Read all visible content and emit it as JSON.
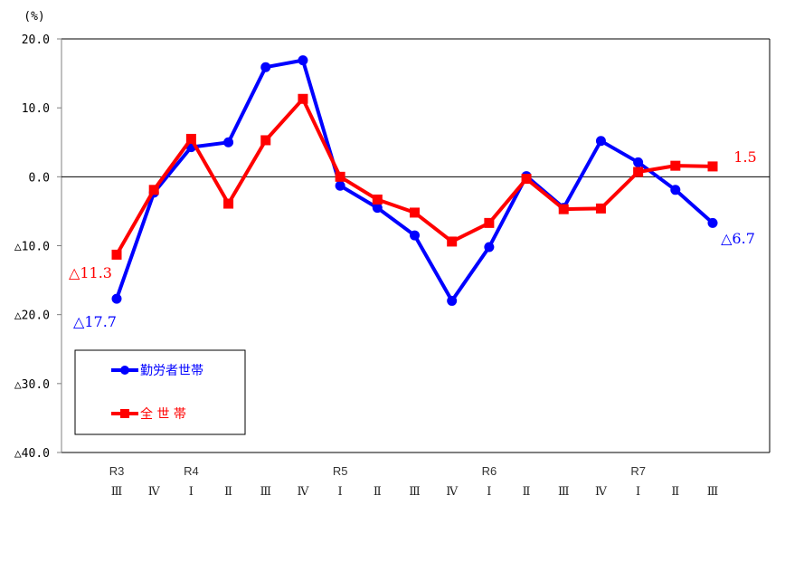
{
  "chart_data": {
    "type": "line",
    "title": "",
    "ylabel": "(%)",
    "xlabel": "",
    "ylim": [
      -40,
      20
    ],
    "yticks": [
      20,
      10,
      0,
      -10,
      -20,
      -30,
      -40
    ],
    "ytick_labels": [
      "20.0",
      "10.0",
      "0.0",
      "△10.0",
      "△20.0",
      "△30.0",
      "△40.0"
    ],
    "grid": false,
    "zero_line": true,
    "year_labels": [
      {
        "index": 0,
        "label": "R3"
      },
      {
        "index": 2,
        "label": "R4"
      },
      {
        "index": 6,
        "label": "R5"
      },
      {
        "index": 10,
        "label": "R6"
      },
      {
        "index": 14,
        "label": "R7"
      }
    ],
    "categories": [
      "Ⅲ",
      "Ⅳ",
      "Ⅰ",
      "Ⅱ",
      "Ⅲ",
      "Ⅳ",
      "Ⅰ",
      "Ⅱ",
      "Ⅲ",
      "Ⅳ",
      "Ⅰ",
      "Ⅱ",
      "Ⅲ",
      "Ⅳ",
      "Ⅰ",
      "Ⅱ",
      "Ⅲ"
    ],
    "series": [
      {
        "name": "勤労者世帯",
        "color": "#0000ff",
        "marker": "circle",
        "values": [
          -17.7,
          -2.3,
          4.3,
          5.0,
          15.9,
          16.9,
          -1.3,
          -4.5,
          -8.5,
          -18.0,
          -10.2,
          0.1,
          -4.5,
          5.2,
          2.1,
          -1.9,
          -6.7
        ]
      },
      {
        "name": "全 世 帯",
        "color": "#ff0000",
        "marker": "square",
        "values": [
          -11.3,
          -1.9,
          5.5,
          -3.9,
          5.3,
          11.3,
          0.0,
          -3.3,
          -5.2,
          -9.4,
          -6.7,
          -0.3,
          -4.7,
          -4.6,
          0.7,
          1.6,
          1.5
        ]
      }
    ],
    "annotations": [
      {
        "series": 1,
        "index": 0,
        "text": "△11.3",
        "color": "#ff0000"
      },
      {
        "series": 0,
        "index": 0,
        "text": "△17.7",
        "color": "#0000ff"
      },
      {
        "series": 1,
        "index": 16,
        "text": "1.5",
        "color": "#ff0000"
      },
      {
        "series": 0,
        "index": 16,
        "text": "△6.7",
        "color": "#0000ff"
      }
    ],
    "legend": {
      "position": "lower-left inside",
      "entries": [
        "勤労者世帯",
        "全 世 帯"
      ]
    }
  }
}
